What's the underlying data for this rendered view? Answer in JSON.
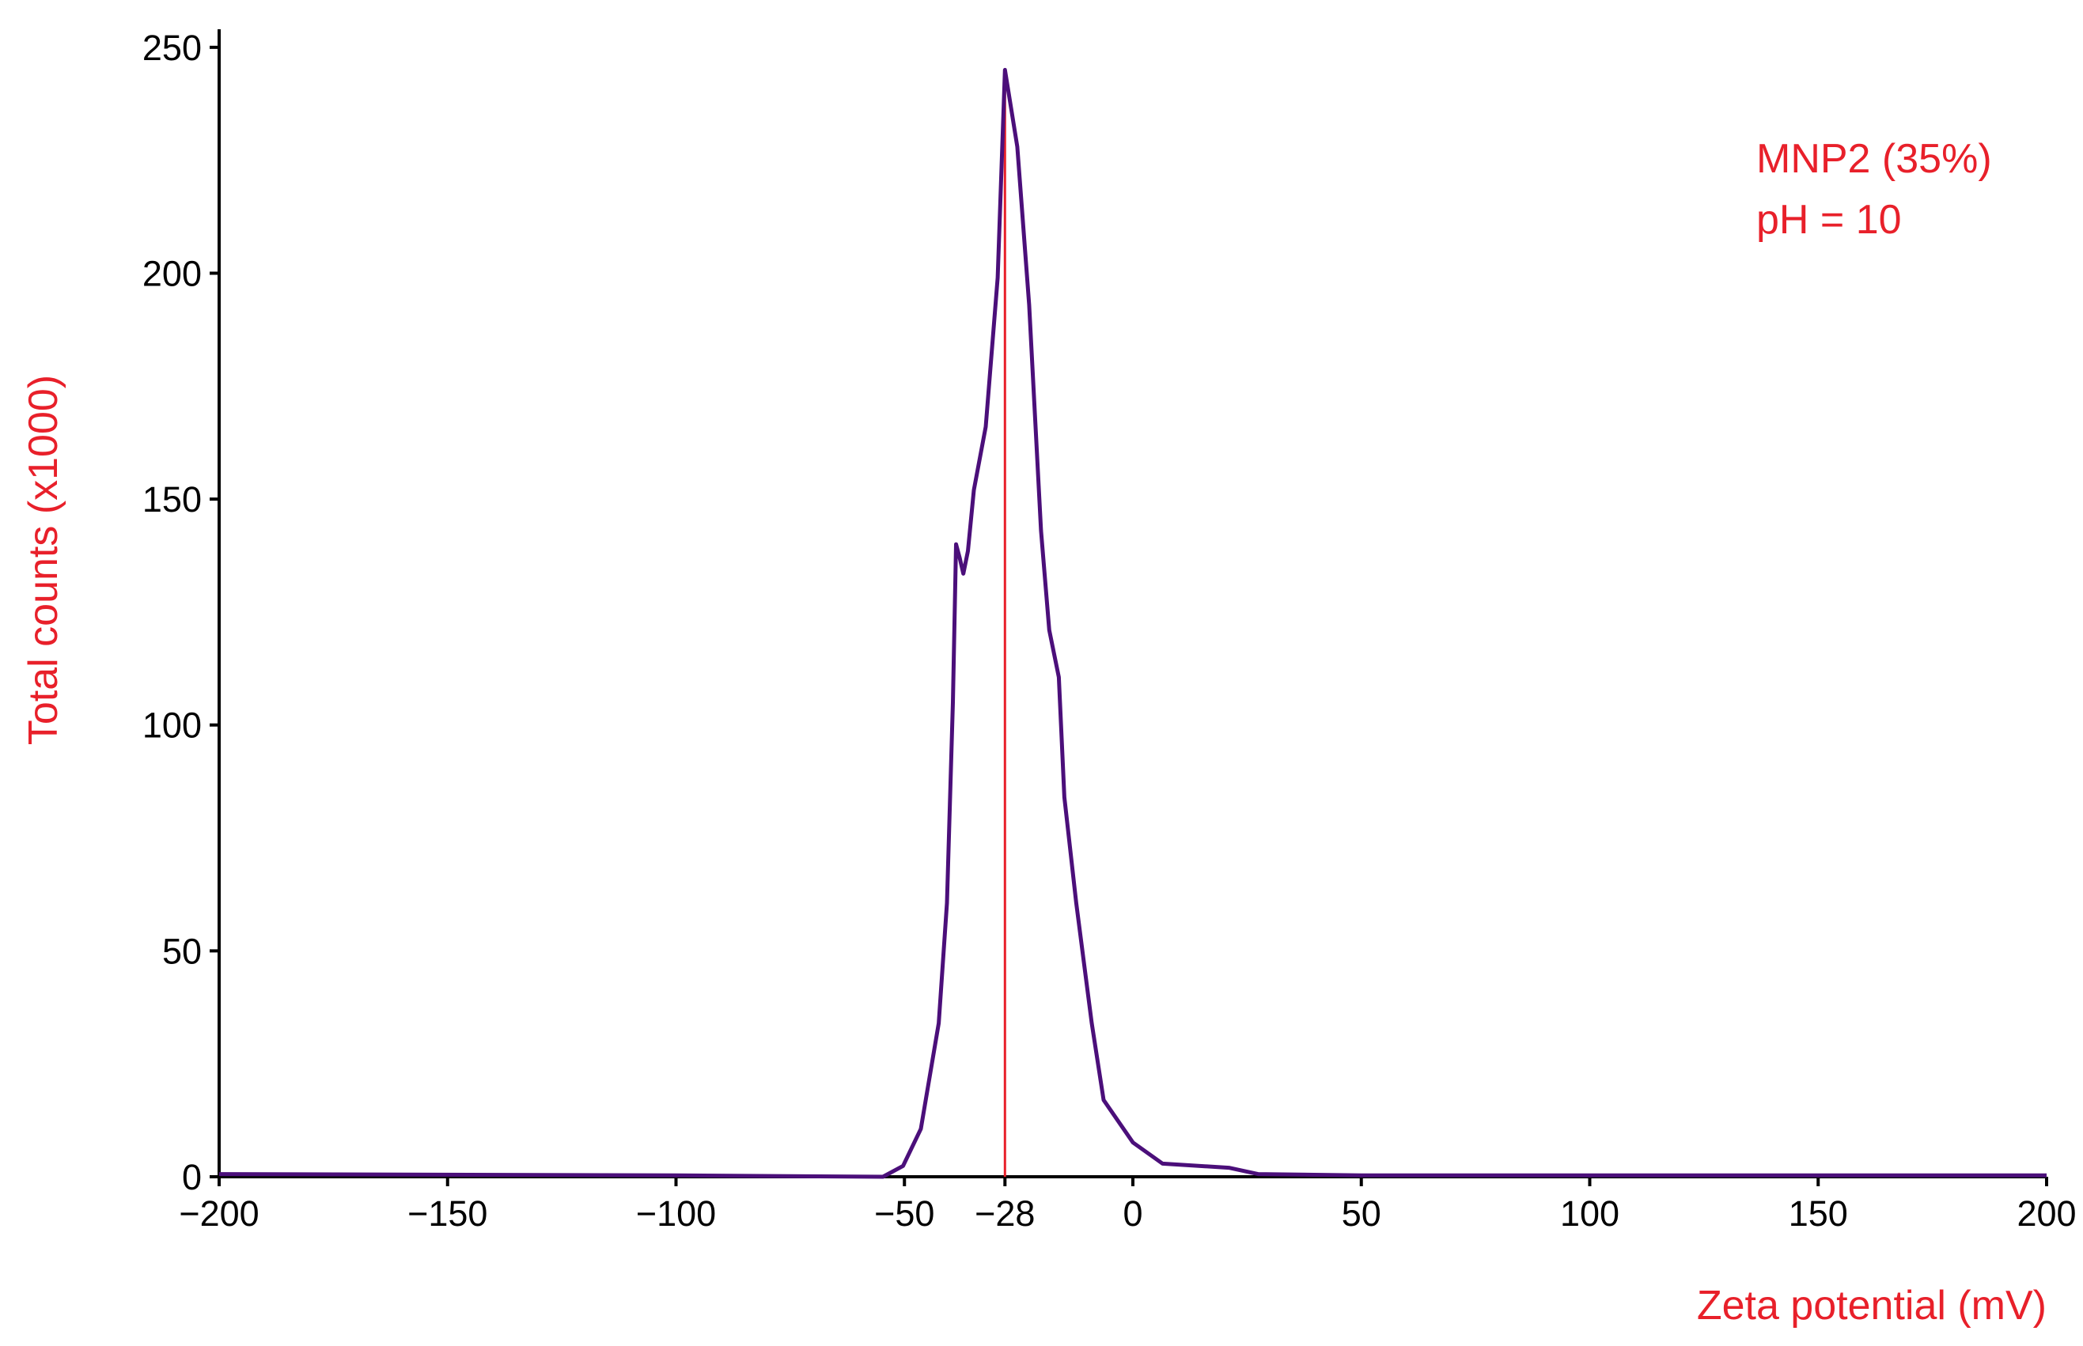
{
  "chart_data": {
    "type": "line",
    "x_label": "Zeta potential (mV)",
    "y_label": "Total counts (x1000)",
    "label_color": "#e8202a",
    "annotations": [
      "MNP2 (35%)",
      "pH = 10"
    ],
    "annotation_color": "#e8202a",
    "x": [
      -200,
      -100,
      -54.7,
      -50.3,
      -46.4,
      -42.5,
      -40.7,
      -39.4,
      -38.7,
      -37.9,
      -37.1,
      -36.1,
      -34.8,
      -32.2,
      -29.6,
      -28,
      -25.3,
      -22.7,
      -20.1,
      -18.3,
      -16.2,
      -15,
      -12.4,
      -9,
      -6.4,
      0,
      6.5,
      21,
      27.4,
      50,
      200
    ],
    "values": [
      0.6,
      0.3,
      0,
      2.4,
      10.6,
      34,
      60.6,
      105,
      140,
      137,
      133.5,
      138.5,
      152,
      166,
      199,
      245,
      228,
      193,
      143,
      121,
      110.6,
      84,
      60.6,
      34,
      17,
      7.6,
      2.9,
      2,
      0.6,
      0.3,
      0.3
    ],
    "color": "#4b0f7a",
    "peak": {
      "x": -28,
      "y": 245,
      "color": "#e8202a"
    },
    "xlim": [
      -200,
      200
    ],
    "xticks": [
      {
        "value": -200,
        "label": "−200"
      },
      {
        "value": -150,
        "label": "−150"
      },
      {
        "value": -100,
        "label": "−100"
      },
      {
        "value": -50,
        "label": "−50"
      },
      {
        "value": -28,
        "label": "−28"
      },
      0,
      50,
      100,
      150,
      200
    ],
    "ylim": [
      0,
      254
    ],
    "yticks": [
      0,
      50,
      100,
      150,
      200,
      250
    ]
  }
}
